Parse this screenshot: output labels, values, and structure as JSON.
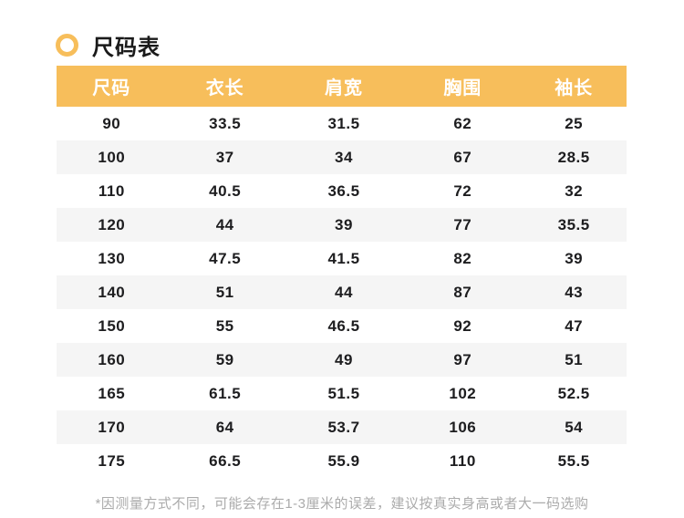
{
  "chart_data": {
    "type": "table",
    "title": "尺码表",
    "columns": [
      "尺码",
      "衣长",
      "肩宽",
      "胸围",
      "袖长"
    ],
    "rows": [
      [
        "90",
        "33.5",
        "31.5",
        "62",
        "25"
      ],
      [
        "100",
        "37",
        "34",
        "67",
        "28.5"
      ],
      [
        "110",
        "40.5",
        "36.5",
        "72",
        "32"
      ],
      [
        "120",
        "44",
        "39",
        "77",
        "35.5"
      ],
      [
        "130",
        "47.5",
        "41.5",
        "82",
        "39"
      ],
      [
        "140",
        "51",
        "44",
        "87",
        "43"
      ],
      [
        "150",
        "55",
        "46.5",
        "92",
        "47"
      ],
      [
        "160",
        "59",
        "49",
        "97",
        "51"
      ],
      [
        "165",
        "61.5",
        "51.5",
        "102",
        "52.5"
      ],
      [
        "170",
        "64",
        "53.7",
        "106",
        "54"
      ],
      [
        "175",
        "66.5",
        "55.9",
        "110",
        "55.5"
      ]
    ],
    "footnote": "*因测量方式不同，可能会存在1-3厘米的误差，建议按真实身高或者大一码选购",
    "layout": {
      "header_position": "top",
      "striped": true,
      "stripe_rows": "even (2nd, 4th, ...)",
      "grid": false,
      "alignment": "center"
    }
  },
  "colors": {
    "accent": "#F7BE5B",
    "stripe": "#F5F5F5",
    "header_text": "#FFFFFF",
    "body_text": "#1D1D1F",
    "footnote_text": "#ABABAB"
  }
}
